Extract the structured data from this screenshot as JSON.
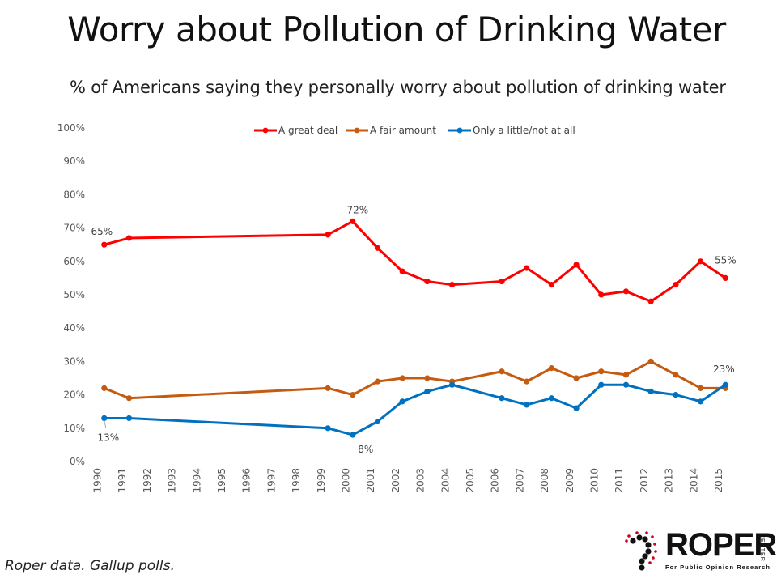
{
  "header": {
    "title": "Worry about Pollution of Drinking Water",
    "subtitle": "% of Americans saying they personally worry about  pollution of drinking water"
  },
  "footer": {
    "source": "Roper data. Gallup polls."
  },
  "logo": {
    "word": "ROPER",
    "side": "CENTER",
    "tagline": "For Public Opinion Research"
  },
  "chart_data": {
    "type": "line",
    "title": "Worry about Pollution of Drinking Water",
    "subtitle": "% of Americans saying they personally worry about  pollution of drinking water",
    "xlabel": "",
    "ylabel": "",
    "ylim": [
      0,
      100
    ],
    "y_ticks": [
      "0%",
      "10%",
      "20%",
      "30%",
      "40%",
      "50%",
      "60%",
      "70%",
      "80%",
      "90%",
      "100%"
    ],
    "x_ticks": [
      "1990",
      "1991",
      "1992",
      "1993",
      "1994",
      "1995",
      "1996",
      "1997",
      "1998",
      "1999",
      "2000",
      "2001",
      "2002",
      "2003",
      "2004",
      "2005",
      "2006",
      "2007",
      "2008",
      "2009",
      "2010",
      "2011",
      "2012",
      "2013",
      "2014",
      "2015"
    ],
    "grid": false,
    "legend_position": "top",
    "x": [
      1990,
      1991,
      1999,
      2000,
      2001,
      2002,
      2003,
      2004,
      2006,
      2007,
      2008,
      2009,
      2010,
      2011,
      2012,
      2013,
      2014,
      2015
    ],
    "series": [
      {
        "name": "A great deal",
        "color": "#FF0000",
        "values": [
          65,
          67,
          68,
          72,
          64,
          57,
          54,
          53,
          54,
          58,
          53,
          59,
          50,
          51,
          48,
          53,
          60,
          55
        ]
      },
      {
        "name": "A fair amount",
        "color": "#C55A11",
        "values": [
          22,
          19,
          22,
          20,
          24,
          25,
          25,
          24,
          27,
          24,
          28,
          25,
          27,
          26,
          30,
          26,
          22,
          22
        ]
      },
      {
        "name": "Only a little/not at all",
        "color": "#0070C0",
        "values": [
          13,
          13,
          10,
          8,
          12,
          18,
          21,
          23,
          19,
          17,
          19,
          16,
          23,
          23,
          21,
          20,
          18,
          23
        ]
      }
    ],
    "annotations": [
      {
        "series": 0,
        "x": 1990,
        "text": "65%"
      },
      {
        "series": 0,
        "x": 2000,
        "text": "72%"
      },
      {
        "series": 0,
        "x": 2015,
        "text": "55%"
      },
      {
        "series": 2,
        "x": 1990,
        "text": "13%"
      },
      {
        "series": 2,
        "x": 2000,
        "text": "8%"
      },
      {
        "series": 2,
        "x": 2015,
        "text": "23%"
      }
    ]
  }
}
